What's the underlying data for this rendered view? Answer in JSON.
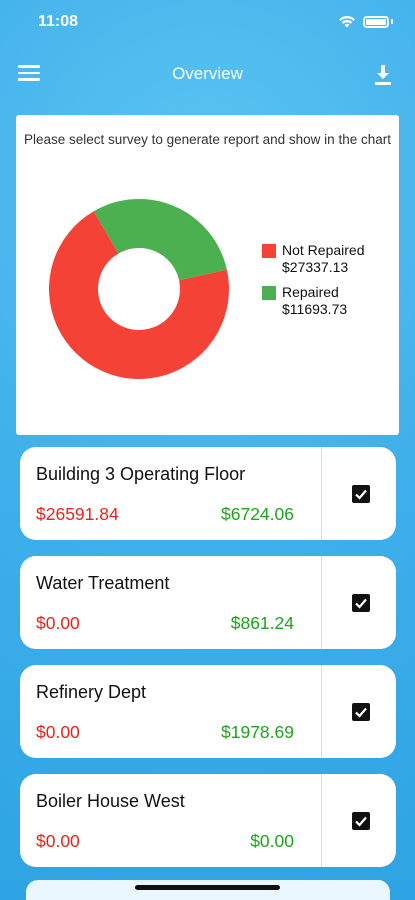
{
  "status_bar": {
    "time": "11:08"
  },
  "nav": {
    "title": "Overview",
    "menu_icon": "hamburger-menu-icon",
    "download_icon": "download-icon"
  },
  "chart_card": {
    "prompt": "Please select survey to generate report and show in the chart",
    "legend": [
      {
        "label": "Not Repaired",
        "value": "$27337.13",
        "color": "#f44336"
      },
      {
        "label": "Repaired",
        "value": "$11693.73",
        "color": "#4caf50"
      }
    ]
  },
  "chart_data": {
    "type": "pie",
    "variant": "donut",
    "categories": [
      "Not Repaired",
      "Repaired"
    ],
    "values": [
      27337.13,
      11693.73
    ],
    "colors": [
      "#f44336",
      "#4caf50"
    ],
    "legend_position": "right"
  },
  "surveys": [
    {
      "name": "Building 3 Operating Floor",
      "not_repaired": "$26591.84",
      "repaired": "$6724.06",
      "checked": true
    },
    {
      "name": "Water Treatment",
      "not_repaired": "$0.00",
      "repaired": "$861.24",
      "checked": true
    },
    {
      "name": "Refinery Dept",
      "not_repaired": "$0.00",
      "repaired": "$1978.69",
      "checked": true
    },
    {
      "name": "Boiler House West",
      "not_repaired": "$0.00",
      "repaired": "$0.00",
      "checked": true
    }
  ],
  "colors": {
    "not_repaired": "#e8231a",
    "repaired": "#1ea31e",
    "background": "#3fb0ea"
  }
}
